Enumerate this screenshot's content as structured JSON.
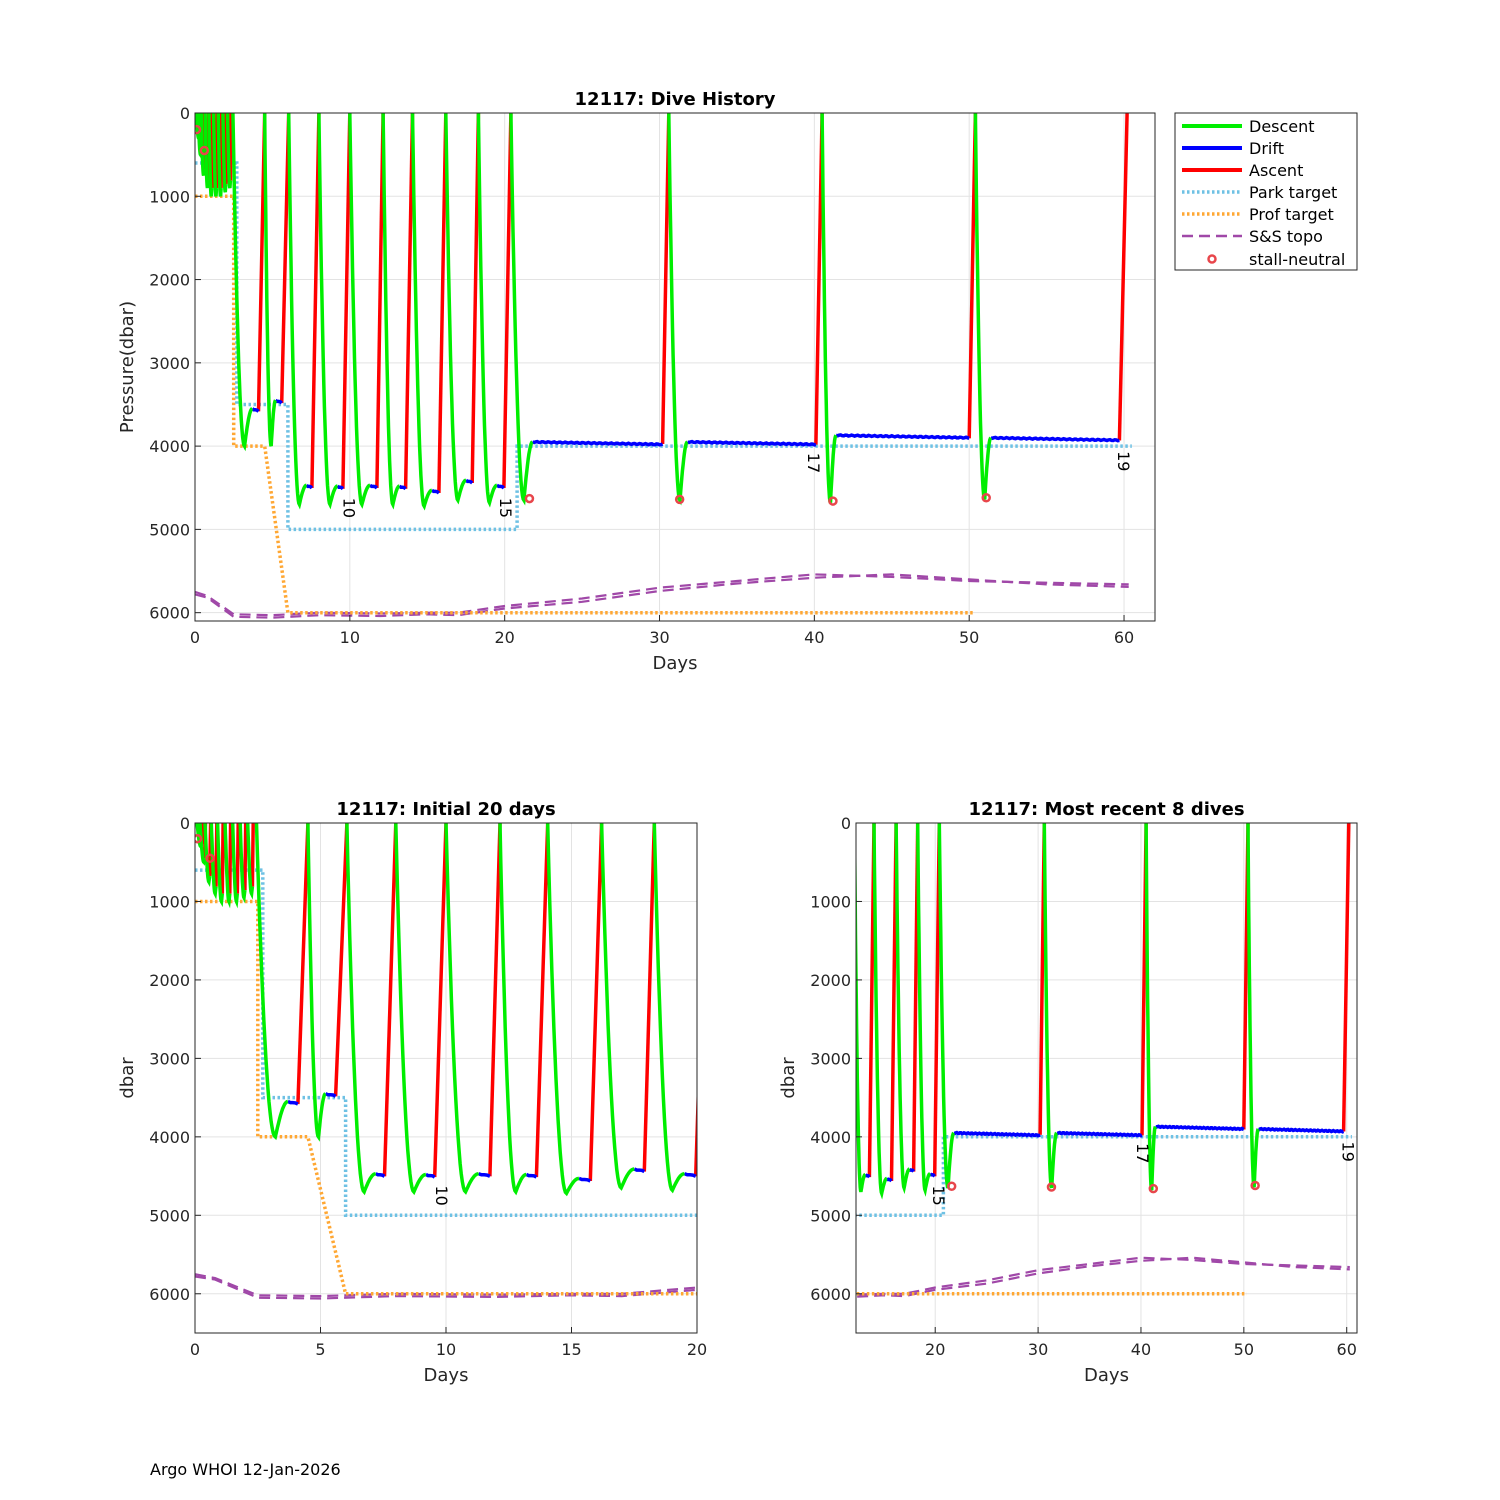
{
  "footer": "Argo WHOI 12-Jan-2026",
  "chart_data": [
    {
      "type": "line",
      "title": "12117: Dive History",
      "xlabel": "Days",
      "ylabel": "Pressure(dbar)",
      "xlim": [
        0,
        62
      ],
      "ylim": [
        6100,
        0
      ],
      "xticks": [
        "0",
        "10",
        "20",
        "30",
        "40",
        "50",
        "60"
      ],
      "yticks": [
        "0",
        "1000",
        "2000",
        "3000",
        "4000",
        "5000",
        "6000"
      ],
      "grid": true,
      "legend_position": "outside-top-right",
      "legend": [
        "Descent",
        "Drift",
        "Ascent",
        "Park target",
        "Prof target",
        "S&S topo",
        "stall-neutral"
      ],
      "annotations": [
        {
          "text": "10",
          "x": 9.6,
          "y": 4620
        },
        {
          "text": "15",
          "x": 19.7,
          "y": 4620
        },
        {
          "text": "17",
          "x": 39.6,
          "y": 4080
        },
        {
          "text": "19",
          "x": 59.6,
          "y": 4060
        }
      ]
    },
    {
      "type": "line",
      "title": "12117: Initial 20 days",
      "xlabel": "Days",
      "ylabel": "dbar",
      "xlim": [
        0,
        20
      ],
      "ylim": [
        6500,
        0
      ],
      "xticks": [
        "0",
        "5",
        "10",
        "15",
        "20"
      ],
      "yticks": [
        "0",
        "1000",
        "2000",
        "3000",
        "4000",
        "5000",
        "6000"
      ],
      "grid": true,
      "annotations": [
        {
          "text": "10",
          "x": 9.6,
          "y": 4620
        }
      ]
    },
    {
      "type": "line",
      "title": "12117: Most recent 8 dives",
      "xlabel": "Days",
      "ylabel": "dbar",
      "xlim": [
        12.3,
        61
      ],
      "ylim": [
        6500,
        0
      ],
      "xticks": [
        "20",
        "30",
        "40",
        "50",
        "60"
      ],
      "yticks": [
        "0",
        "1000",
        "2000",
        "3000",
        "4000",
        "5000",
        "6000"
      ],
      "grid": true,
      "annotations": [
        {
          "text": "15",
          "x": 19.8,
          "y": 4620
        },
        {
          "text": "17",
          "x": 39.6,
          "y": 4080
        },
        {
          "text": "19",
          "x": 59.6,
          "y": 4060
        }
      ]
    }
  ],
  "series": {
    "descent_color": "#00ee00",
    "drift_color": "#0000ff",
    "ascent_color": "#ff0000",
    "park_color": "#6ec1e4",
    "prof_color": "#ffa733",
    "topo_color": "#a048a8",
    "stall_color": "#e8464b",
    "early_cycles": [
      {
        "start": 0.08,
        "bottom": 300,
        "drift": 0,
        "asc": 0.05
      },
      {
        "start": 0.2,
        "bottom": 500,
        "drift": 0,
        "asc": 0.05
      },
      {
        "start": 0.4,
        "bottom": 750,
        "drift": 0,
        "asc": 0.05
      },
      {
        "start": 0.65,
        "bottom": 900,
        "drift": 0,
        "asc": 0.05
      },
      {
        "start": 0.9,
        "bottom": 1000,
        "drift": 0,
        "asc": 0.05
      },
      {
        "start": 1.2,
        "bottom": 1000,
        "drift": 0,
        "asc": 0.05
      },
      {
        "start": 1.5,
        "bottom": 1000,
        "drift": 0,
        "asc": 0.05
      },
      {
        "start": 1.8,
        "bottom": 950,
        "drift": 0,
        "asc": 0.05
      },
      {
        "start": 2.1,
        "bottom": 900,
        "drift": 0,
        "asc": 0.05
      }
    ],
    "cycles": [
      {
        "start": 2.45,
        "dip": 4000,
        "drift": 3550,
        "drift_start": 3.7,
        "asc_start": 4.1,
        "asc_end": 4.5
      },
      {
        "start": 4.5,
        "dip": 4000,
        "drift": 3450,
        "drift_start": 5.2,
        "asc_start": 5.6,
        "asc_end": 6.05
      },
      {
        "start": 6.05,
        "dip": 4700,
        "drift": 4470,
        "drift_start": 7.2,
        "asc_start": 7.55,
        "asc_end": 8.0
      },
      {
        "start": 8.0,
        "dip": 4700,
        "drift": 4480,
        "drift_start": 9.2,
        "asc_start": 9.55,
        "asc_end": 10.0
      },
      {
        "start": 10.0,
        "dip": 4700,
        "drift": 4470,
        "drift_start": 11.3,
        "asc_start": 11.75,
        "asc_end": 12.15
      },
      {
        "start": 12.15,
        "dip": 4700,
        "drift": 4480,
        "drift_start": 13.2,
        "asc_start": 13.6,
        "asc_end": 14.05
      },
      {
        "start": 14.05,
        "dip": 4720,
        "drift": 4530,
        "drift_start": 15.3,
        "asc_start": 15.75,
        "asc_end": 16.2
      },
      {
        "start": 16.2,
        "dip": 4650,
        "drift": 4410,
        "drift_start": 17.5,
        "asc_start": 17.9,
        "asc_end": 18.3
      },
      {
        "start": 18.3,
        "dip": 4680,
        "drift": 4470,
        "drift_start": 19.5,
        "asc_start": 19.95,
        "asc_end": 20.4
      },
      {
        "start": 20.4,
        "dip": 4650,
        "drift": 3950,
        "drift_start": 21.8,
        "asc_start": 30.2,
        "asc_end": 30.6
      },
      {
        "start": 30.6,
        "dip": 4650,
        "drift": 3950,
        "drift_start": 31.8,
        "asc_start": 40.1,
        "asc_end": 40.5
      },
      {
        "start": 40.5,
        "dip": 4680,
        "drift": 3870,
        "drift_start": 41.4,
        "asc_start": 50.0,
        "asc_end": 50.4
      },
      {
        "start": 50.4,
        "dip": 4640,
        "drift": 3900,
        "drift_start": 51.4,
        "asc_start": 59.7,
        "asc_end": 60.2
      }
    ],
    "stall_points": [
      {
        "x": 0.1,
        "y": 200
      },
      {
        "x": 0.6,
        "y": 450
      },
      {
        "x": 21.6,
        "y": 4630
      },
      {
        "x": 31.3,
        "y": 4640
      },
      {
        "x": 41.2,
        "y": 4660
      },
      {
        "x": 51.1,
        "y": 4620
      }
    ],
    "park_target": [
      [
        0,
        600
      ],
      [
        2.7,
        600
      ],
      [
        2.7,
        3500
      ],
      [
        6.0,
        3500
      ],
      [
        6.0,
        5000
      ],
      [
        20.8,
        5000
      ],
      [
        20.8,
        4000
      ],
      [
        60.5,
        4000
      ]
    ],
    "prof_target": [
      [
        0,
        1000
      ],
      [
        2.5,
        1000
      ],
      [
        2.5,
        4000
      ],
      [
        4.5,
        4000
      ],
      [
        6.0,
        6000
      ],
      [
        50.3,
        6000
      ]
    ],
    "topo_a": [
      [
        0,
        5750
      ],
      [
        0.8,
        5800
      ],
      [
        2.5,
        6020
      ],
      [
        5,
        6030
      ],
      [
        8,
        6000
      ],
      [
        12,
        6010
      ],
      [
        15,
        6000
      ],
      [
        17,
        6000
      ],
      [
        20,
        5920
      ],
      [
        25,
        5830
      ],
      [
        30,
        5700
      ],
      [
        35,
        5620
      ],
      [
        40,
        5540
      ],
      [
        45,
        5570
      ],
      [
        50,
        5620
      ],
      [
        55,
        5640
      ],
      [
        60.3,
        5660
      ]
    ],
    "topo_b": [
      [
        0,
        5780
      ],
      [
        0.8,
        5820
      ],
      [
        2.5,
        6050
      ],
      [
        5,
        6060
      ],
      [
        8,
        6030
      ],
      [
        12,
        6040
      ],
      [
        15,
        6020
      ],
      [
        17,
        6030
      ],
      [
        20,
        5950
      ],
      [
        25,
        5870
      ],
      [
        30,
        5740
      ],
      [
        35,
        5650
      ],
      [
        40,
        5580
      ],
      [
        45,
        5540
      ],
      [
        50,
        5600
      ],
      [
        55,
        5660
      ],
      [
        60.3,
        5690
      ]
    ]
  }
}
